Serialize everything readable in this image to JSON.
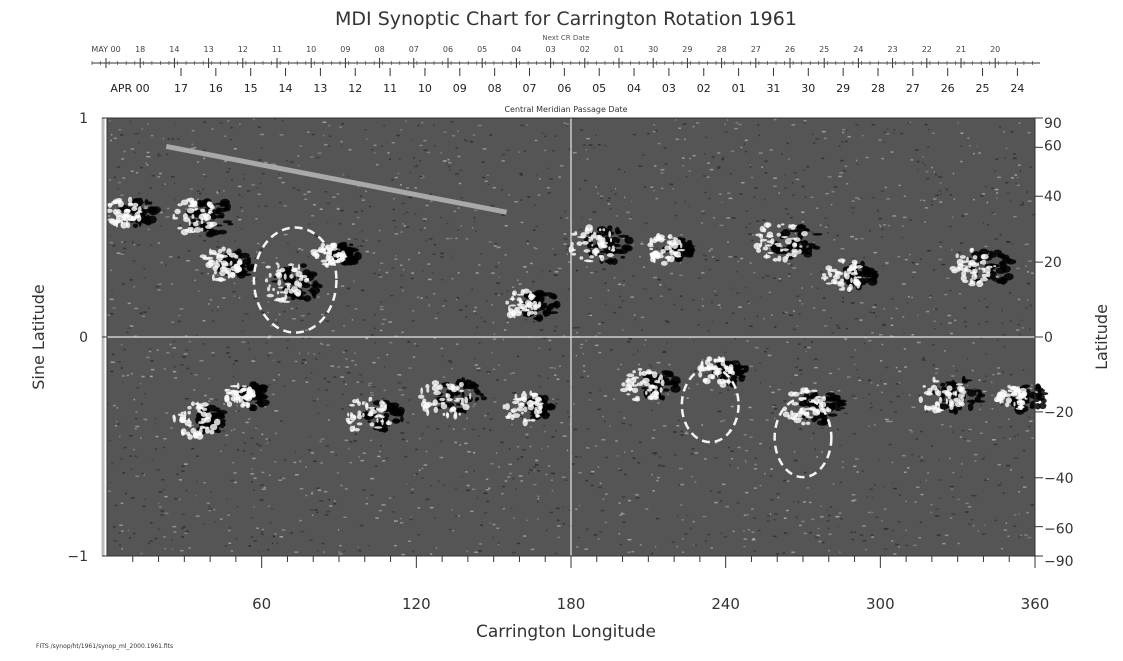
{
  "chart_data": {
    "type": "heatmap",
    "title": "MDI Synoptic Chart for Carrington Rotation 1961",
    "top_axis": {
      "row1_label": "Next CR Date",
      "row1_ticks": [
        "MAY 00",
        "18",
        "14",
        "13",
        "12",
        "11",
        "10",
        "09",
        "08",
        "07",
        "06",
        "05",
        "04",
        "03",
        "02",
        "01",
        "30",
        "29",
        "28",
        "27",
        "26",
        "25",
        "24",
        "23",
        "22",
        "21",
        "20"
      ],
      "row2_label": "APR 00",
      "row2_ticks": [
        "17",
        "16",
        "15",
        "14",
        "13",
        "12",
        "11",
        "10",
        "09",
        "08",
        "07",
        "06",
        "05",
        "04",
        "03",
        "02",
        "01",
        "31",
        "30",
        "29",
        "28",
        "27",
        "26",
        "25",
        "24"
      ],
      "caption": "Central Meridian Passage Date"
    },
    "xlabel": "Carrington Longitude",
    "xlim": [
      0,
      360
    ],
    "xticks": [
      60,
      120,
      180,
      240,
      300,
      360
    ],
    "ylabel_left": "Sine Latitude",
    "ylim": [
      -1,
      1
    ],
    "yticks_left": [
      {
        "value": 1,
        "label": "1"
      },
      {
        "value": 0,
        "label": "0"
      },
      {
        "value": -1,
        "label": "−1"
      }
    ],
    "ylabel_right": "Latitude",
    "yticks_right": [
      {
        "deg": 90,
        "label": "90"
      },
      {
        "deg": 60,
        "label": "60"
      },
      {
        "deg": 40,
        "label": "40"
      },
      {
        "deg": 20,
        "label": "20"
      },
      {
        "deg": 0,
        "label": "0"
      },
      {
        "deg": -20,
        "label": "−20"
      },
      {
        "deg": -40,
        "label": "−40"
      },
      {
        "deg": -60,
        "label": "−60"
      },
      {
        "deg": -90,
        "label": "−90"
      }
    ],
    "guide_lines": {
      "central_meridian_longitude": 180,
      "equator_sine_latitude": 0
    },
    "footer": "FITS /synop/ht/1961/synop_ml_2000.1961.fits",
    "colormap": {
      "positive": "#ffffff",
      "negative": "#000000",
      "neutral": "#555555"
    },
    "active_regions": [
      {
        "lon": 10,
        "sinlat": 0.57,
        "pos": 0.7,
        "neg": 0.8
      },
      {
        "lon": 38,
        "sinlat": 0.55,
        "pos": 0.9,
        "neg": 1.0
      },
      {
        "lon": 48,
        "sinlat": 0.33,
        "pos": 0.8,
        "neg": 0.7
      },
      {
        "lon": 72,
        "sinlat": 0.25,
        "pos": 1.0,
        "neg": 1.0
      },
      {
        "lon": 90,
        "sinlat": 0.38,
        "pos": 0.6,
        "neg": 0.6
      },
      {
        "lon": 165,
        "sinlat": 0.15,
        "pos": 0.7,
        "neg": 0.8
      },
      {
        "lon": 192,
        "sinlat": 0.42,
        "pos": 0.9,
        "neg": 1.0
      },
      {
        "lon": 220,
        "sinlat": 0.4,
        "pos": 0.7,
        "neg": 0.6
      },
      {
        "lon": 265,
        "sinlat": 0.44,
        "pos": 1.0,
        "neg": 1.0
      },
      {
        "lon": 290,
        "sinlat": 0.28,
        "pos": 0.8,
        "neg": 0.7
      },
      {
        "lon": 340,
        "sinlat": 0.32,
        "pos": 0.9,
        "neg": 1.0
      },
      {
        "lon": 38,
        "sinlat": -0.38,
        "pos": 0.9,
        "neg": 0.7
      },
      {
        "lon": 55,
        "sinlat": -0.27,
        "pos": 0.6,
        "neg": 0.7
      },
      {
        "lon": 105,
        "sinlat": -0.36,
        "pos": 0.9,
        "neg": 0.8
      },
      {
        "lon": 135,
        "sinlat": -0.28,
        "pos": 1.0,
        "neg": 1.0
      },
      {
        "lon": 165,
        "sinlat": -0.32,
        "pos": 0.8,
        "neg": 0.6
      },
      {
        "lon": 212,
        "sinlat": -0.22,
        "pos": 0.8,
        "neg": 0.8
      },
      {
        "lon": 240,
        "sinlat": -0.16,
        "pos": 0.7,
        "neg": 0.7
      },
      {
        "lon": 275,
        "sinlat": -0.32,
        "pos": 0.9,
        "neg": 0.9
      },
      {
        "lon": 328,
        "sinlat": -0.27,
        "pos": 0.9,
        "neg": 1.0
      },
      {
        "lon": 355,
        "sinlat": -0.28,
        "pos": 0.6,
        "neg": 0.8
      }
    ],
    "annotations": [
      {
        "type": "line",
        "lon1": 23,
        "sinlat1": 0.87,
        "lon2": 155,
        "sinlat2": 0.57
      },
      {
        "type": "ellipse",
        "lon": 73,
        "sinlat": 0.26,
        "dlon": 16,
        "dsinlat": 0.24
      },
      {
        "type": "ellipse",
        "lon": 234,
        "sinlat": -0.31,
        "dlon": 11,
        "dsinlat": 0.17
      },
      {
        "type": "ellipse",
        "lon": 270,
        "sinlat": -0.46,
        "dlon": 11,
        "dsinlat": 0.18
      }
    ]
  }
}
